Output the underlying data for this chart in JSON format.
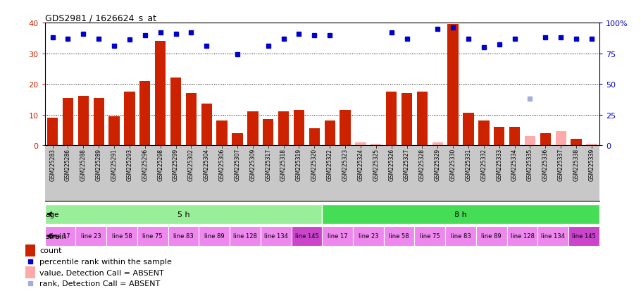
{
  "title": "GDS2981 / 1626624_s_at",
  "samples": [
    "GSM225283",
    "GSM225286",
    "GSM225288",
    "GSM225289",
    "GSM225291",
    "GSM225293",
    "GSM225296",
    "GSM225298",
    "GSM225299",
    "GSM225302",
    "GSM225304",
    "GSM225306",
    "GSM225307",
    "GSM225309",
    "GSM225317",
    "GSM225318",
    "GSM225319",
    "GSM225320",
    "GSM225322",
    "GSM225323",
    "GSM225324",
    "GSM225325",
    "GSM225326",
    "GSM225327",
    "GSM225328",
    "GSM225329",
    "GSM225330",
    "GSM225331",
    "GSM225332",
    "GSM225333",
    "GSM225334",
    "GSM225335",
    "GSM225336",
    "GSM225337",
    "GSM225338",
    "GSM225339"
  ],
  "counts": [
    9.0,
    15.5,
    16.0,
    15.5,
    9.5,
    17.5,
    21.0,
    34.0,
    22.0,
    17.0,
    13.5,
    8.0,
    4.0,
    11.0,
    8.5,
    11.0,
    11.5,
    5.5,
    8.0,
    11.5,
    null,
    null,
    17.5,
    17.0,
    17.5,
    null,
    39.5,
    10.5,
    8.0,
    6.0,
    6.0,
    null,
    4.0,
    null,
    2.0,
    null
  ],
  "counts_absent": [
    null,
    null,
    null,
    null,
    null,
    null,
    null,
    null,
    null,
    null,
    null,
    null,
    null,
    null,
    null,
    null,
    null,
    null,
    null,
    null,
    1.0,
    0.5,
    null,
    null,
    null,
    1.0,
    null,
    null,
    null,
    null,
    null,
    3.0,
    null,
    4.5,
    null,
    0.5
  ],
  "ranks": [
    88.0,
    87.0,
    91.0,
    87.0,
    81.0,
    86.0,
    90.0,
    92.0,
    91.0,
    92.0,
    81.0,
    null,
    74.0,
    null,
    81.0,
    87.0,
    91.0,
    90.0,
    90.0,
    null,
    null,
    null,
    92.0,
    87.0,
    null,
    95.0,
    96.0,
    87.0,
    80.0,
    82.0,
    87.0,
    null,
    88.0,
    88.0,
    87.0,
    87.0
  ],
  "ranks_absent": [
    null,
    null,
    null,
    null,
    null,
    null,
    null,
    null,
    null,
    null,
    null,
    null,
    null,
    null,
    null,
    null,
    null,
    null,
    null,
    null,
    null,
    null,
    null,
    null,
    null,
    null,
    null,
    null,
    null,
    null,
    null,
    38.0,
    null,
    null,
    null,
    null
  ],
  "age_groups": [
    {
      "label": "5 h",
      "start": 0,
      "end": 18,
      "color": "#99EE99"
    },
    {
      "label": "8 h",
      "start": 18,
      "end": 36,
      "color": "#44DD55"
    }
  ],
  "strain_groups": [
    {
      "label": "line 17",
      "start": 0,
      "end": 2,
      "color": "#EE88EE"
    },
    {
      "label": "line 23",
      "start": 2,
      "end": 4,
      "color": "#EE88EE"
    },
    {
      "label": "line 58",
      "start": 4,
      "end": 6,
      "color": "#EE88EE"
    },
    {
      "label": "line 75",
      "start": 6,
      "end": 8,
      "color": "#EE88EE"
    },
    {
      "label": "line 83",
      "start": 8,
      "end": 10,
      "color": "#EE88EE"
    },
    {
      "label": "line 89",
      "start": 10,
      "end": 12,
      "color": "#EE88EE"
    },
    {
      "label": "line 128",
      "start": 12,
      "end": 14,
      "color": "#EE88EE"
    },
    {
      "label": "line 134",
      "start": 14,
      "end": 16,
      "color": "#EE88EE"
    },
    {
      "label": "line 145",
      "start": 16,
      "end": 18,
      "color": "#CC44CC"
    },
    {
      "label": "line 17",
      "start": 18,
      "end": 20,
      "color": "#EE88EE"
    },
    {
      "label": "line 23",
      "start": 20,
      "end": 22,
      "color": "#EE88EE"
    },
    {
      "label": "line 58",
      "start": 22,
      "end": 24,
      "color": "#EE88EE"
    },
    {
      "label": "line 75",
      "start": 24,
      "end": 26,
      "color": "#EE88EE"
    },
    {
      "label": "line 83",
      "start": 26,
      "end": 28,
      "color": "#EE88EE"
    },
    {
      "label": "line 89",
      "start": 28,
      "end": 30,
      "color": "#EE88EE"
    },
    {
      "label": "line 128",
      "start": 30,
      "end": 32,
      "color": "#EE88EE"
    },
    {
      "label": "line 134",
      "start": 32,
      "end": 34,
      "color": "#EE88EE"
    },
    {
      "label": "line 145",
      "start": 34,
      "end": 36,
      "color": "#CC44CC"
    }
  ],
  "ylim_left": [
    0,
    40
  ],
  "ylim_right": [
    0,
    100
  ],
  "yticks_left": [
    0,
    10,
    20,
    30,
    40
  ],
  "yticks_right": [
    0,
    25,
    50,
    75,
    100
  ],
  "bar_color": "#CC2200",
  "bar_absent_color": "#FFAAAA",
  "dot_color": "#0000CC",
  "dot_absent_color": "#AAAADD",
  "bg_color": "#FFFFFF",
  "xtick_bg": "#C8C8C8",
  "tick_color_left": "#CC2200",
  "tick_color_right": "#0000CC"
}
